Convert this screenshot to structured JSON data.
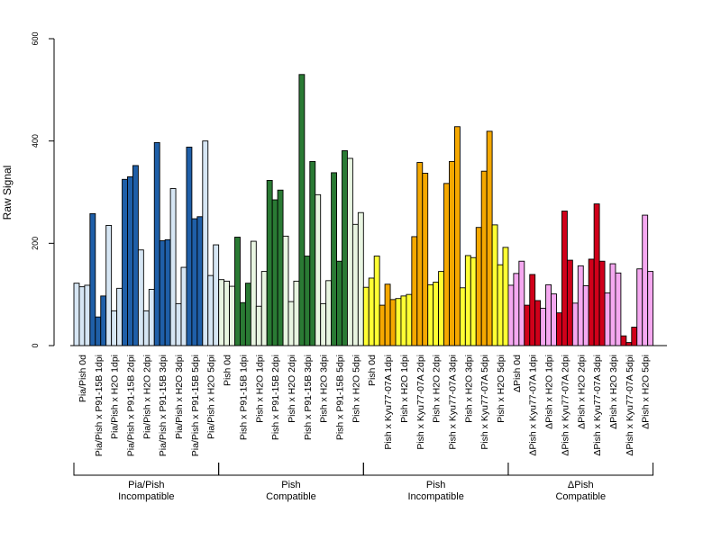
{
  "chart_data": {
    "type": "bar",
    "title": "",
    "xlabel": "",
    "ylabel": "Raw Signal",
    "ylim": [
      0,
      600
    ],
    "yticks": [
      "0",
      "200",
      "400",
      "600"
    ],
    "grid": false,
    "legend": "none",
    "colors": {
      "light_blue": "#d6e6f4",
      "dark_blue": "#1f5fa8",
      "light_green": "#e8f5e1",
      "dark_green": "#2a7a34",
      "yellow": "#ffff33",
      "orange": "#f5a800",
      "pink": "#f5a8f0",
      "red": "#d0001a"
    },
    "categories": [
      {
        "label": "Pia/Pish 0d",
        "color": "light_blue",
        "values": [
          122,
          115,
          118
        ]
      },
      {
        "label": "Pia/Pish x P91-15B 1dpi",
        "color": "dark_blue",
        "values": [
          258,
          56,
          97
        ]
      },
      {
        "label": "Pia/Pish x H2O 1dpi",
        "color": "light_blue",
        "values": [
          235,
          68,
          112
        ]
      },
      {
        "label": "Pia/Pish x P91-15B 2dpi",
        "color": "dark_blue",
        "values": [
          325,
          330,
          352
        ]
      },
      {
        "label": "Pia/Pish x H2O 2dpi",
        "color": "light_blue",
        "values": [
          187,
          68,
          110
        ]
      },
      {
        "label": "Pia/Pish x P91-15B 3dpi",
        "color": "dark_blue",
        "values": [
          397,
          205,
          207
        ]
      },
      {
        "label": "Pia/Pish x H2O 3dpi",
        "color": "light_blue",
        "values": [
          307,
          82,
          153
        ]
      },
      {
        "label": "Pia/Pish x P91-15B 5dpi",
        "color": "dark_blue",
        "values": [
          388,
          248,
          252
        ]
      },
      {
        "label": "Pia/Pish x H2O 5dpi",
        "color": "light_blue",
        "values": [
          400,
          137,
          197
        ]
      },
      {
        "label": "Pish 0d",
        "color": "light_green",
        "values": [
          129,
          126,
          116
        ]
      },
      {
        "label": "Pish x P91-15B 1dpi",
        "color": "dark_green",
        "values": [
          212,
          84,
          122
        ]
      },
      {
        "label": "Pish x H2O 1dpi",
        "color": "light_green",
        "values": [
          204,
          77,
          145
        ]
      },
      {
        "label": "Pish x P91-15B 2dpi",
        "color": "dark_green",
        "values": [
          323,
          285,
          304
        ]
      },
      {
        "label": "Pish x H2O 2dpi",
        "color": "light_green",
        "values": [
          214,
          86,
          126
        ]
      },
      {
        "label": "Pish x P91-15B 3dpi",
        "color": "dark_green",
        "values": [
          530,
          175,
          360
        ]
      },
      {
        "label": "Pish x H2O 3dpi",
        "color": "light_green",
        "values": [
          295,
          82,
          127
        ]
      },
      {
        "label": "Pish x P91-15B 5dpi",
        "color": "dark_green",
        "values": [
          338,
          165,
          381
        ]
      },
      {
        "label": "Pish x H2O 5dpi",
        "color": "light_green",
        "values": [
          366,
          237,
          260
        ]
      },
      {
        "label": "Pish 0d",
        "color": "yellow",
        "values": [
          114,
          132,
          175
        ]
      },
      {
        "label": "Pish x Kyu77-07A 1dpi",
        "color": "orange",
        "values": [
          79,
          120,
          90
        ]
      },
      {
        "label": "Pish x H2O 1dpi",
        "color": "yellow",
        "values": [
          92,
          97,
          100
        ]
      },
      {
        "label": "Pish x Kyu77-07A 2dpi",
        "color": "orange",
        "values": [
          213,
          358,
          337
        ]
      },
      {
        "label": "Pish x H2O 2dpi",
        "color": "yellow",
        "values": [
          119,
          124,
          145
        ]
      },
      {
        "label": "Pish x Kyu77-07A 3dpi",
        "color": "orange",
        "values": [
          317,
          360,
          428
        ]
      },
      {
        "label": "Pish x H2O 3dpi",
        "color": "yellow",
        "values": [
          113,
          176,
          172
        ]
      },
      {
        "label": "Pish x Kyu77-07A 5dpi",
        "color": "orange",
        "values": [
          231,
          341,
          419
        ]
      },
      {
        "label": "Pish x H2O 5dpi",
        "color": "yellow",
        "values": [
          236,
          158,
          192
        ]
      },
      {
        "label": "ΔPish 0d",
        "color": "pink",
        "values": [
          118,
          141,
          165
        ]
      },
      {
        "label": "ΔPish x Kyu77-07A 1dpi",
        "color": "red",
        "values": [
          79,
          139,
          88
        ]
      },
      {
        "label": "ΔPish x H2O 1dpi",
        "color": "pink",
        "values": [
          73,
          119,
          101
        ]
      },
      {
        "label": "ΔPish x Kyu77-07A 2dpi",
        "color": "red",
        "values": [
          64,
          263,
          167
        ]
      },
      {
        "label": "ΔPish x H2O 2dpi",
        "color": "pink",
        "values": [
          83,
          156,
          117
        ]
      },
      {
        "label": "ΔPish x Kyu77-07A 3dpi",
        "color": "red",
        "values": [
          169,
          277,
          165
        ]
      },
      {
        "label": "ΔPish x H2O 3dpi",
        "color": "pink",
        "values": [
          103,
          160,
          142
        ]
      },
      {
        "label": "ΔPish x Kyu77-07A 5dpi",
        "color": "red",
        "values": [
          19,
          6,
          36
        ]
      },
      {
        "label": "ΔPish x H2O 5dpi",
        "color": "pink",
        "values": [
          150,
          255,
          145
        ]
      }
    ],
    "groups": [
      {
        "line1": "Pia/Pish",
        "line2": "Incompatible",
        "first": 0,
        "last": 8
      },
      {
        "line1": "Pish",
        "line2": "Compatible",
        "first": 9,
        "last": 17
      },
      {
        "line1": "Pish",
        "line2": "Incompatible",
        "first": 18,
        "last": 26
      },
      {
        "line1": "ΔPish",
        "line2": "Compatible",
        "first": 27,
        "last": 35
      }
    ]
  }
}
